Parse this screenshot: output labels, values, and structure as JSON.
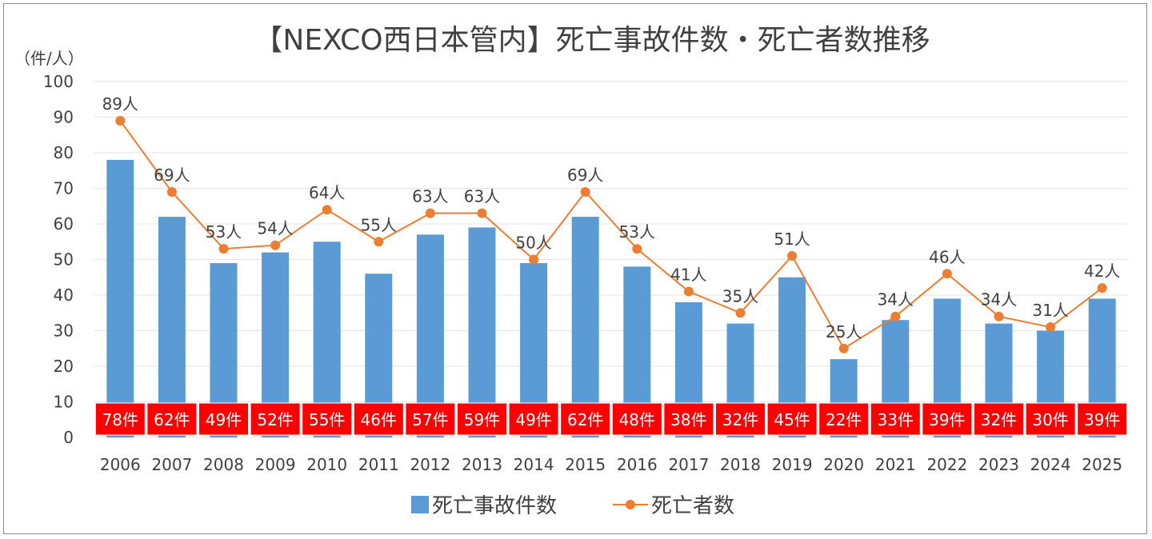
{
  "chart_data": {
    "type": "bar+line",
    "title": "【NEXCO西日本管内】死亡事故件数・死亡者数推移",
    "unit_label": "（件/人）",
    "categories": [
      "2006",
      "2007",
      "2008",
      "2009",
      "2010",
      "2011",
      "2012",
      "2013",
      "2014",
      "2015",
      "2016",
      "2017",
      "2018",
      "2019",
      "2020",
      "2021",
      "2022",
      "2023",
      "2024",
      "2025"
    ],
    "series": [
      {
        "name": "死亡事故件数",
        "type": "bar",
        "color": "#5B9BD5",
        "label_suffix": "件",
        "label_bg": "#FF0000",
        "values": [
          78,
          62,
          49,
          52,
          55,
          46,
          57,
          59,
          49,
          62,
          48,
          38,
          32,
          45,
          22,
          33,
          39,
          32,
          30,
          39
        ]
      },
      {
        "name": "死亡者数",
        "type": "line",
        "color": "#ED7D31",
        "label_suffix": "人",
        "values": [
          89,
          69,
          53,
          54,
          64,
          55,
          63,
          63,
          50,
          69,
          53,
          41,
          35,
          51,
          25,
          34,
          46,
          34,
          31,
          42
        ]
      }
    ],
    "ylim": [
      0,
      100
    ],
    "yticks": [
      0,
      10,
      20,
      30,
      40,
      50,
      60,
      70,
      80,
      90,
      100
    ],
    "grid": true,
    "legend": "bottom"
  }
}
